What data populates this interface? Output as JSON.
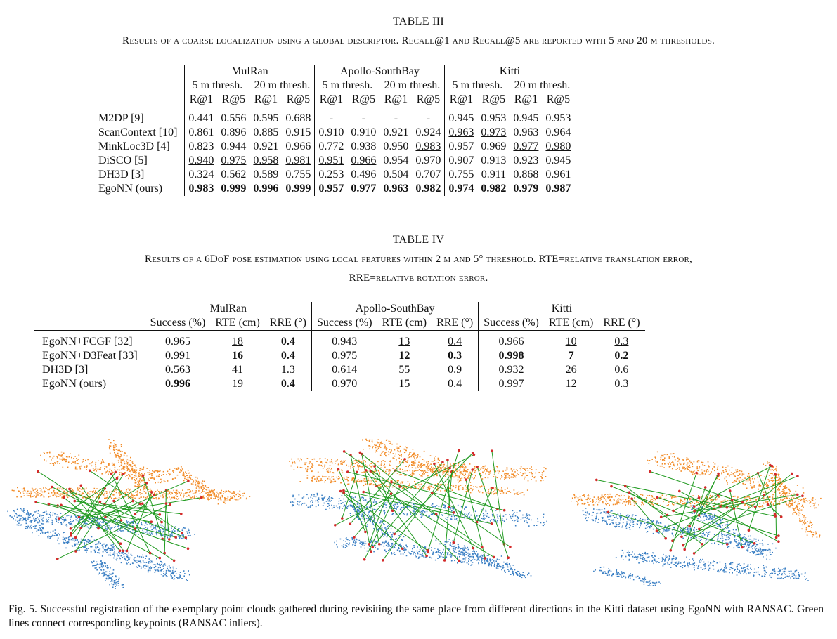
{
  "table3": {
    "title": "TABLE III",
    "caption": "Results of a coarse localization using a global descriptor. Recall@1 and Recall@5 are reported with 5 and 20 m thresholds.",
    "groups": [
      "MulRan",
      "Apollo-SouthBay",
      "Kitti"
    ],
    "subgroups": [
      "5 m thresh.",
      "20 m thresh.",
      "5 m thresh.",
      "20 m thresh.",
      "5 m thresh.",
      "20 m thresh."
    ],
    "metrics": [
      "R@1",
      "R@5",
      "R@1",
      "R@5",
      "R@1",
      "R@5",
      "R@1",
      "R@5",
      "R@1",
      "R@5",
      "R@1",
      "R@5"
    ],
    "rows": [
      {
        "name": "M2DP [9]",
        "values": [
          "0.441",
          "0.556",
          "0.595",
          "0.688",
          "-",
          "-",
          "-",
          "-",
          "0.945",
          "0.953",
          "0.945",
          "0.953"
        ]
      },
      {
        "name": "ScanContext [10]",
        "values": [
          "0.861",
          "0.896",
          "0.885",
          "0.915",
          "0.910",
          "0.910",
          "0.921",
          "0.924",
          "0.963",
          "0.973",
          "0.963",
          "0.964"
        ]
      },
      {
        "name": "MinkLoc3D [4]",
        "values": [
          "0.823",
          "0.944",
          "0.921",
          "0.966",
          "0.772",
          "0.938",
          "0.950",
          "0.983",
          "0.957",
          "0.969",
          "0.977",
          "0.980"
        ]
      },
      {
        "name": "DiSCO [5]",
        "values": [
          "0.940",
          "0.975",
          "0.958",
          "0.981",
          "0.951",
          "0.966",
          "0.954",
          "0.970",
          "0.907",
          "0.913",
          "0.923",
          "0.945"
        ]
      },
      {
        "name": "DH3D [3]",
        "values": [
          "0.324",
          "0.562",
          "0.589",
          "0.755",
          "0.253",
          "0.496",
          "0.504",
          "0.707",
          "0.755",
          "0.911",
          "0.868",
          "0.961"
        ]
      },
      {
        "name": "EgoNN (ours)",
        "values": [
          "0.983",
          "0.999",
          "0.996",
          "0.999",
          "0.957",
          "0.977",
          "0.963",
          "0.982",
          "0.974",
          "0.982",
          "0.979",
          "0.987"
        ]
      }
    ]
  },
  "table4": {
    "title": "TABLE IV",
    "caption_line1": "Results of a 6DoF pose estimation using local features within 2 m and 5° threshold. RTE=relative translation error,",
    "caption_line2": "RRE=relative rotation error.",
    "groups": [
      "MulRan",
      "Apollo-SouthBay",
      "Kitti"
    ],
    "metrics": [
      "Success (%)",
      "RTE (cm)",
      "RRE (°)",
      "Success (%)",
      "RTE (cm)",
      "RRE (°)",
      "Success (%)",
      "RTE (cm)",
      "RRE (°)"
    ],
    "rows": [
      {
        "name": "EgoNN+FCGF [32]",
        "values": [
          "0.965",
          "18",
          "0.4",
          "0.943",
          "13",
          "0.4",
          "0.966",
          "10",
          "0.3"
        ]
      },
      {
        "name": "EgoNN+D3Feat [33]",
        "values": [
          "0.991",
          "16",
          "0.4",
          "0.975",
          "12",
          "0.3",
          "0.998",
          "7",
          "0.2"
        ]
      },
      {
        "name": "DH3D [3]",
        "values": [
          "0.563",
          "41",
          "1.3",
          "0.614",
          "55",
          "0.9",
          "0.932",
          "26",
          "0.6"
        ]
      },
      {
        "name": "EgoNN (ours)",
        "values": [
          "0.996",
          "19",
          "0.4",
          "0.970",
          "15",
          "0.4",
          "0.997",
          "12",
          "0.3"
        ]
      }
    ]
  },
  "figure": {
    "caption": "Fig. 5.   Successful registration of the exemplary point clouds gathered during revisiting the same place from different directions in the Kitti dataset using EgoNN with RANSAC. Green lines connect corresponding keypoints (RANSAC inliers).",
    "colors": {
      "orange": "#f28c28",
      "blue": "#3a7fc4",
      "green": "#1f9a1f",
      "red": "#d42a2a"
    }
  }
}
